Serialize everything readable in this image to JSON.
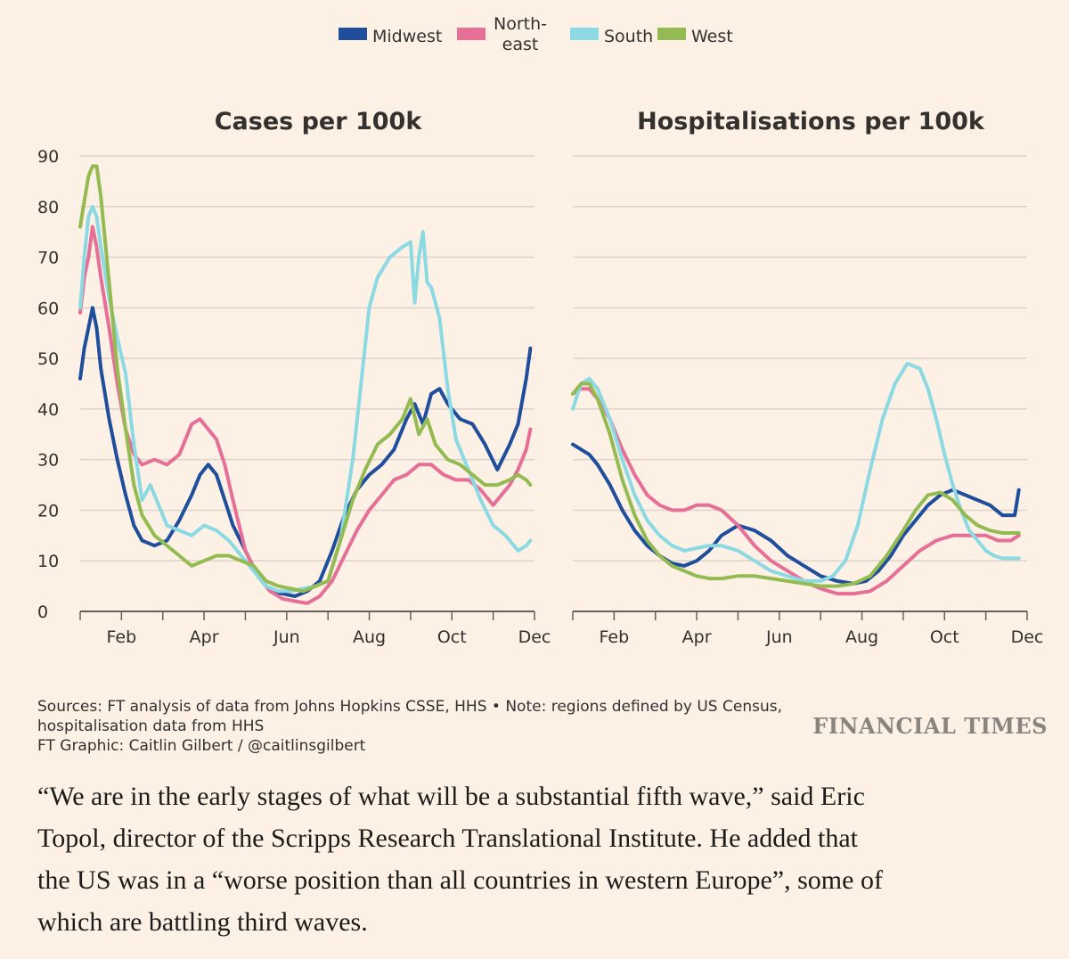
{
  "legend": {
    "items": [
      {
        "lines": [
          "Midwest"
        ],
        "color": "#1f4e9c"
      },
      {
        "lines": [
          "North-",
          "east"
        ],
        "color": "#e56f97"
      },
      {
        "lines": [
          "South"
        ],
        "color": "#8ad9e3"
      },
      {
        "lines": [
          "West"
        ],
        "color": "#94bb52"
      }
    ]
  },
  "chart_data": [
    {
      "type": "line",
      "title": "Cases per 100k",
      "x_tick_labels": [
        "Feb",
        "Apr",
        "Jun",
        "Aug",
        "Oct",
        "Dec"
      ],
      "y_tick_labels": [
        "0",
        "10",
        "20",
        "30",
        "40",
        "50",
        "60",
        "70",
        "80",
        "90"
      ],
      "ylim": [
        0,
        90
      ],
      "xlim": [
        0,
        11
      ],
      "grid": true,
      "legend_position": "top",
      "series": [
        {
          "name": "Midwest",
          "color": "#1f4e9c",
          "x": [
            0,
            0.1,
            0.2,
            0.3,
            0.4,
            0.5,
            0.7,
            0.9,
            1.1,
            1.3,
            1.5,
            1.8,
            2.1,
            2.4,
            2.7,
            2.9,
            3.1,
            3.3,
            3.5,
            3.7,
            4.0,
            4.3,
            4.6,
            4.9,
            5.2,
            5.5,
            5.8,
            6.1,
            6.4,
            6.7,
            7.0,
            7.3,
            7.6,
            7.9,
            8.1,
            8.3,
            8.5,
            8.7,
            8.9,
            9.2,
            9.5,
            9.8,
            10.1,
            10.4,
            10.6,
            10.8,
            10.9
          ],
          "y": [
            46,
            52,
            56,
            60,
            56,
            48,
            38,
            30,
            23,
            17,
            14,
            13,
            14,
            18,
            23,
            27,
            29,
            27,
            22,
            17,
            12,
            7,
            4,
            3.5,
            3,
            4,
            6,
            12,
            19,
            24,
            27,
            29,
            32,
            38,
            41,
            37,
            43,
            44,
            41,
            38,
            37,
            33,
            28,
            33,
            37,
            46,
            52
          ]
        },
        {
          "name": "North-east",
          "color": "#e56f97",
          "x": [
            0,
            0.1,
            0.2,
            0.3,
            0.4,
            0.5,
            0.7,
            0.9,
            1.1,
            1.3,
            1.5,
            1.8,
            2.1,
            2.4,
            2.7,
            2.9,
            3.1,
            3.3,
            3.5,
            3.7,
            4.0,
            4.3,
            4.6,
            4.9,
            5.2,
            5.5,
            5.8,
            6.1,
            6.4,
            6.7,
            7.0,
            7.3,
            7.6,
            7.9,
            8.2,
            8.5,
            8.8,
            9.1,
            9.4,
            9.7,
            10.0,
            10.2,
            10.4,
            10.6,
            10.8,
            10.9
          ],
          "y": [
            59,
            66,
            70,
            76,
            72,
            66,
            56,
            45,
            36,
            31,
            29,
            30,
            29,
            31,
            37,
            38,
            36,
            34,
            29,
            22,
            12,
            7,
            4,
            2.5,
            2,
            1.6,
            3,
            6,
            11,
            16,
            20,
            23,
            26,
            27,
            29,
            29,
            27,
            26,
            26,
            24,
            21,
            23,
            25,
            28,
            32,
            36
          ]
        },
        {
          "name": "South",
          "color": "#8ad9e3",
          "x": [
            0,
            0.1,
            0.2,
            0.3,
            0.4,
            0.5,
            0.7,
            0.9,
            1.1,
            1.3,
            1.5,
            1.7,
            1.9,
            2.1,
            2.4,
            2.7,
            3.0,
            3.3,
            3.6,
            3.9,
            4.2,
            4.5,
            4.8,
            5.1,
            5.4,
            5.7,
            6.0,
            6.3,
            6.6,
            6.8,
            7.0,
            7.2,
            7.5,
            7.8,
            8.0,
            8.1,
            8.2,
            8.3,
            8.4,
            8.5,
            8.7,
            8.9,
            9.1,
            9.4,
            9.7,
            10.0,
            10.3,
            10.6,
            10.8,
            10.9
          ],
          "y": [
            60,
            70,
            78,
            80,
            78,
            72,
            62,
            54,
            47,
            33,
            22,
            25,
            21,
            17,
            16,
            15,
            17,
            16,
            14,
            11,
            8,
            5,
            4,
            4,
            4.5,
            5,
            6,
            14,
            30,
            45,
            60,
            66,
            70,
            72,
            73,
            61,
            70,
            75,
            65,
            64,
            58,
            44,
            34,
            28,
            22,
            17,
            15,
            12,
            13,
            14
          ]
        },
        {
          "name": "West",
          "color": "#94bb52",
          "x": [
            0,
            0.1,
            0.2,
            0.3,
            0.4,
            0.5,
            0.7,
            0.9,
            1.1,
            1.3,
            1.5,
            1.8,
            2.1,
            2.4,
            2.7,
            3.0,
            3.3,
            3.6,
            3.9,
            4.2,
            4.5,
            4.8,
            5.1,
            5.4,
            5.7,
            6.0,
            6.3,
            6.6,
            6.9,
            7.2,
            7.5,
            7.8,
            8.0,
            8.2,
            8.4,
            8.6,
            8.9,
            9.2,
            9.5,
            9.8,
            10.1,
            10.4,
            10.6,
            10.8,
            10.9
          ],
          "y": [
            76,
            81,
            86,
            88,
            88,
            82,
            65,
            48,
            36,
            25,
            19,
            15,
            13,
            11,
            9,
            10,
            11,
            11,
            10,
            9,
            6,
            5,
            4.5,
            4,
            5,
            6,
            14,
            22,
            28,
            33,
            35,
            38,
            42,
            35,
            38,
            33,
            30,
            29,
            27,
            25,
            25,
            26,
            27,
            26,
            25
          ]
        }
      ]
    },
    {
      "type": "line",
      "title": "Hospitalisations per 100k",
      "x_tick_labels": [
        "Feb",
        "Apr",
        "Jun",
        "Aug",
        "Oct",
        "Dec"
      ],
      "ylim": [
        0,
        90
      ],
      "xlim": [
        0,
        11
      ],
      "grid": true,
      "legend_position": "top",
      "series": [
        {
          "name": "Midwest",
          "color": "#1f4e9c",
          "x": [
            0,
            0.2,
            0.4,
            0.6,
            0.9,
            1.2,
            1.5,
            1.8,
            2.1,
            2.4,
            2.7,
            3.0,
            3.3,
            3.6,
            4.0,
            4.4,
            4.8,
            5.2,
            5.6,
            6.0,
            6.4,
            6.8,
            7.1,
            7.4,
            7.7,
            8.0,
            8.3,
            8.6,
            8.9,
            9.2,
            9.5,
            9.8,
            10.1,
            10.4,
            10.7,
            10.8
          ],
          "y": [
            33,
            32,
            31,
            29,
            25,
            20,
            16,
            13,
            11,
            9.5,
            9,
            10,
            12,
            15,
            17,
            16,
            14,
            11,
            9,
            7,
            6,
            5.5,
            6,
            8,
            11,
            15,
            18,
            21,
            23,
            24,
            23,
            22,
            21,
            19,
            19,
            24
          ]
        },
        {
          "name": "North-east",
          "color": "#e56f97",
          "x": [
            0,
            0.2,
            0.4,
            0.6,
            0.9,
            1.2,
            1.5,
            1.8,
            2.1,
            2.4,
            2.7,
            3.0,
            3.3,
            3.6,
            4.0,
            4.4,
            4.8,
            5.2,
            5.6,
            6.0,
            6.4,
            6.8,
            7.2,
            7.6,
            8.0,
            8.4,
            8.8,
            9.2,
            9.6,
            10.0,
            10.3,
            10.6,
            10.8
          ],
          "y": [
            43,
            44,
            44,
            42,
            38,
            32,
            27,
            23,
            21,
            20,
            20,
            21,
            21,
            20,
            17,
            13,
            10,
            8,
            6,
            4.5,
            3.5,
            3.5,
            4,
            6,
            9,
            12,
            14,
            15,
            15,
            15,
            14,
            14,
            15
          ]
        },
        {
          "name": "South",
          "color": "#8ad9e3",
          "x": [
            0,
            0.2,
            0.4,
            0.6,
            0.9,
            1.2,
            1.5,
            1.8,
            2.1,
            2.4,
            2.7,
            3.0,
            3.3,
            3.6,
            4.0,
            4.4,
            4.8,
            5.2,
            5.6,
            6.0,
            6.3,
            6.6,
            6.9,
            7.2,
            7.5,
            7.8,
            8.1,
            8.4,
            8.6,
            8.8,
            9.0,
            9.2,
            9.4,
            9.6,
            9.8,
            10.0,
            10.2,
            10.4,
            10.6,
            10.8
          ],
          "y": [
            40,
            45,
            46,
            44,
            38,
            30,
            23,
            18,
            15,
            13,
            12,
            12.5,
            13,
            13,
            12,
            10,
            8,
            7,
            6,
            6,
            7,
            10,
            17,
            28,
            38,
            45,
            49,
            48,
            44,
            38,
            31,
            25,
            20,
            16,
            14,
            12,
            11,
            10.5,
            10.5,
            10.5
          ]
        },
        {
          "name": "West",
          "color": "#94bb52",
          "x": [
            0,
            0.2,
            0.4,
            0.6,
            0.9,
            1.2,
            1.5,
            1.8,
            2.1,
            2.4,
            2.7,
            3.0,
            3.3,
            3.6,
            4.0,
            4.4,
            4.8,
            5.2,
            5.6,
            6.0,
            6.4,
            6.8,
            7.2,
            7.6,
            8.0,
            8.3,
            8.6,
            8.9,
            9.2,
            9.5,
            9.8,
            10.1,
            10.4,
            10.7,
            10.8
          ],
          "y": [
            43,
            45,
            45,
            42,
            35,
            26,
            19,
            14,
            11,
            9,
            8,
            7,
            6.5,
            6.5,
            7,
            7,
            6.5,
            6,
            5.5,
            5,
            5,
            5.5,
            7,
            11,
            16,
            20,
            23,
            23.5,
            22,
            19,
            17,
            16,
            15.5,
            15.5,
            15.5
          ]
        }
      ]
    }
  ],
  "footer": {
    "source_lines": [
      "Sources: FT analysis of data from Johns Hopkins CSSE, HHS • Note: regions defined by US Census,",
      "hospitalisation data from HHS",
      "FT Graphic: Caitlin Gilbert / @caitlinsgilbert"
    ],
    "brand": "FINANCIAL TIMES"
  },
  "article": {
    "lines": [
      "“We are in the early stages of what will be a substantial fifth wave,” said Eric",
      "Topol, director of the Scripps Research Translational Institute. He added that",
      "the US was in a “worse position than all countries in western Europe”, some of",
      "which are battling third waves."
    ]
  }
}
